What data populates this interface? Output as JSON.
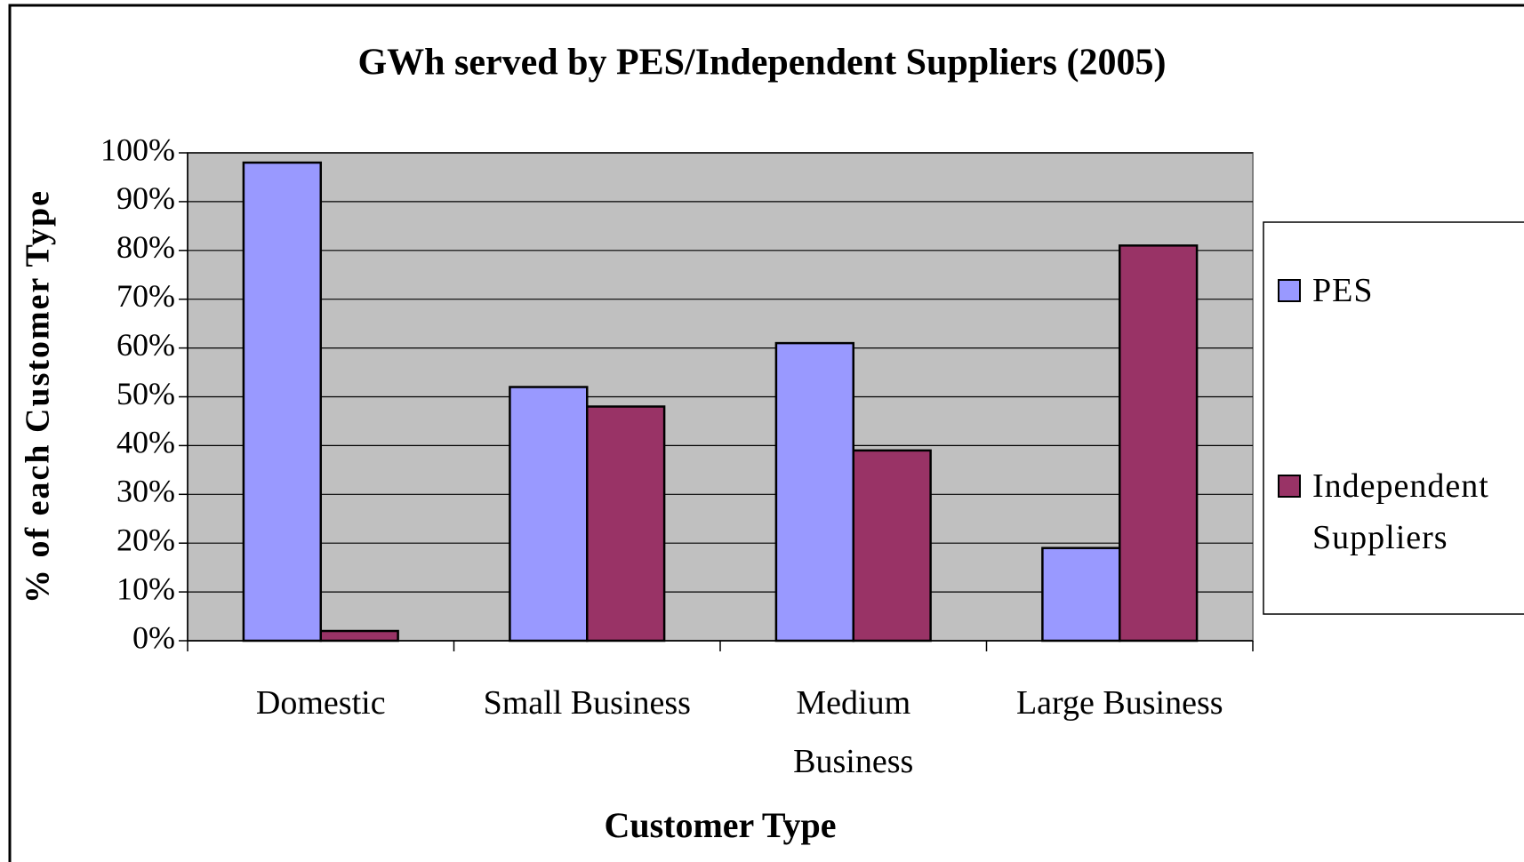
{
  "chart_data": {
    "type": "bar",
    "title": "GWh served by PES/Independent Suppliers (2005)",
    "xlabel": "Customer Type",
    "ylabel": "% of each Customer Type",
    "categories": [
      "Domestic",
      "Small Business",
      "Medium Business",
      "Large Business"
    ],
    "series": [
      {
        "name": "PES",
        "color": "#9999ff",
        "values": [
          98,
          52,
          61,
          19
        ]
      },
      {
        "name": "Independent Suppliers",
        "color": "#993366",
        "values": [
          2,
          48,
          39,
          81
        ]
      }
    ],
    "ylim": [
      0,
      100
    ],
    "yticks": [
      {
        "value": 0,
        "label": "0%"
      },
      {
        "value": 10,
        "label": "10%"
      },
      {
        "value": 20,
        "label": "20%"
      },
      {
        "value": 30,
        "label": "30%"
      },
      {
        "value": 40,
        "label": "40%"
      },
      {
        "value": 50,
        "label": "50%"
      },
      {
        "value": 60,
        "label": "60%"
      },
      {
        "value": 70,
        "label": "70%"
      },
      {
        "value": 80,
        "label": "80%"
      },
      {
        "value": 90,
        "label": "90%"
      },
      {
        "value": 100,
        "label": "100%"
      }
    ],
    "grid": true,
    "legend": "right"
  }
}
